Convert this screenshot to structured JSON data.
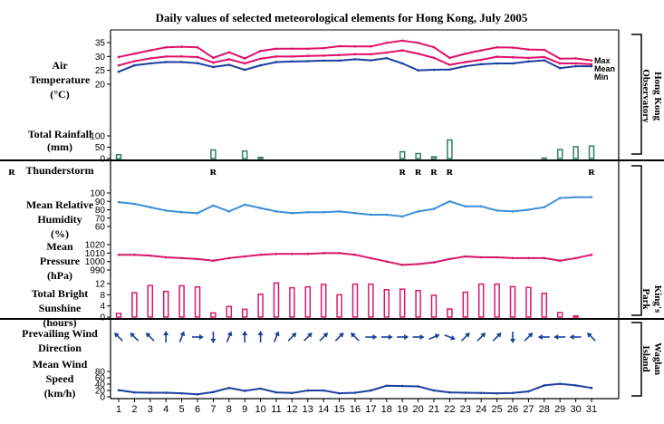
{
  "chart_data": {
    "title": "Daily values of selected meteorological elements for Hong Kong, July 2005",
    "type": "line",
    "days": [
      "1",
      "2",
      "3",
      "4",
      "5",
      "6",
      "7",
      "8",
      "9",
      "10",
      "11",
      "12",
      "13",
      "14",
      "15",
      "16",
      "17",
      "18",
      "19",
      "20",
      "21",
      "22",
      "23",
      "24",
      "25",
      "26",
      "27",
      "28",
      "29",
      "30",
      "31"
    ],
    "stations": [
      "Hong Kong Observatory",
      "King's Park",
      "Waglan Island"
    ],
    "colors": {
      "temp": "#e0106a",
      "temp_min": "#1a3f9e",
      "humidity": "#3b8fd8",
      "pressure": "#d8186a",
      "sunshine": "#d8186a",
      "rainfall": "#2e7f6a",
      "wind": "#1a3f9e"
    },
    "panels": [
      {
        "id": "temperature",
        "type": "line",
        "label": [
          "Air",
          "Temperature",
          "(°C)"
        ],
        "ylim": [
          20,
          35
        ],
        "yticks": [
          "20",
          "25",
          "30",
          "35"
        ],
        "series": [
          {
            "name": "Max",
            "values": [
              29.8,
              31.0,
              32.2,
              33.3,
              33.5,
              33.3,
              29.5,
              31.5,
              29.3,
              32.0,
              32.8,
              32.8,
              32.8,
              33.0,
              33.7,
              33.6,
              33.6,
              34.9,
              35.7,
              34.9,
              33.3,
              29.5,
              31.0,
              32.2,
              33.3,
              33.2,
              32.5,
              32.4,
              29.2,
              29.3,
              28.6
            ]
          },
          {
            "name": "Mean",
            "values": [
              26.8,
              28.3,
              29.3,
              30.0,
              30.0,
              29.8,
              27.8,
              29.0,
              27.5,
              29.2,
              30.0,
              30.0,
              30.2,
              30.3,
              30.5,
              30.8,
              30.8,
              31.4,
              32.2,
              31.0,
              29.5,
              27.0,
              28.0,
              28.8,
              29.9,
              29.7,
              29.5,
              29.8,
              27.5,
              27.5,
              27.2
            ]
          },
          {
            "name": "Min",
            "values": [
              24.5,
              26.8,
              27.5,
              28.0,
              28.0,
              27.6,
              26.2,
              27.0,
              25.2,
              26.8,
              28.0,
              28.2,
              28.3,
              28.5,
              28.5,
              29.0,
              28.6,
              29.4,
              27.5,
              25.0,
              25.2,
              25.3,
              26.5,
              27.2,
              27.5,
              27.5,
              28.2,
              28.6,
              25.8,
              26.5,
              26.5
            ]
          }
        ]
      },
      {
        "id": "rainfall",
        "type": "bar",
        "label": [
          "Total Rainfall",
          "(mm)"
        ],
        "ylim": [
          0,
          100
        ],
        "yticks": [
          "0",
          "50",
          "100"
        ],
        "values": [
          17,
          0,
          0,
          0,
          0,
          0,
          38,
          0,
          33,
          5,
          0,
          0,
          0,
          0,
          0,
          0,
          0,
          0,
          30,
          22,
          8,
          82,
          0,
          0,
          0,
          0,
          0,
          2,
          40,
          52,
          55
        ]
      },
      {
        "id": "thunderstorm",
        "type": "marker",
        "label": [
          "Thunderstorm"
        ],
        "symbol": "ʀ",
        "days": [
          7,
          19,
          20,
          21,
          22,
          31
        ]
      },
      {
        "id": "humidity",
        "type": "line",
        "label": [
          "Mean Relative",
          "Humidity",
          "(%)"
        ],
        "ylim": [
          60,
          100
        ],
        "yticks": [
          "60",
          "70",
          "80",
          "90",
          "100"
        ],
        "values": [
          89,
          87,
          83,
          79,
          77,
          76,
          85,
          78,
          86,
          82,
          78,
          76,
          77,
          77,
          78,
          76,
          74,
          74,
          72,
          78,
          81,
          90,
          84,
          84,
          79,
          78,
          80,
          83,
          94,
          95,
          95
        ]
      },
      {
        "id": "pressure",
        "type": "line",
        "label": [
          "Mean",
          "Pressure",
          "(hPa)"
        ],
        "ylim": [
          990,
          1020
        ],
        "yticks": [
          "990",
          "1000",
          "1010",
          "1020"
        ],
        "values": [
          1008,
          1008,
          1007,
          1005,
          1004,
          1003,
          1001,
          1004,
          1006,
          1008,
          1009,
          1009,
          1009,
          1010,
          1010,
          1008,
          1004,
          1000,
          996,
          997,
          999,
          1003,
          1006,
          1005,
          1005,
          1004,
          1004,
          1004,
          1001,
          1004,
          1008
        ]
      },
      {
        "id": "sunshine",
        "type": "bar",
        "label": [
          "Total Bright",
          "Sunshine",
          "(hours)"
        ],
        "ylim": [
          0,
          12
        ],
        "yticks": [
          "0",
          "4",
          "8",
          "12"
        ],
        "values": [
          1.3,
          8.7,
          11.3,
          9.2,
          11.2,
          10.8,
          1.5,
          3.8,
          2.8,
          8.2,
          12.2,
          10.5,
          10.8,
          11.7,
          8,
          11.8,
          11.8,
          9.8,
          10,
          9.5,
          7.8,
          2.9,
          8.9,
          11.8,
          11.8,
          10.9,
          10.6,
          8.5,
          1.6,
          0.4,
          0
        ]
      },
      {
        "id": "wind_direction",
        "type": "arrows",
        "label": [
          "Prevailing Wind",
          "Direction"
        ],
        "degrees_from": [
          135,
          135,
          135,
          180,
          202,
          270,
          0,
          202,
          180,
          180,
          202,
          225,
          225,
          225,
          225,
          135,
          270,
          270,
          270,
          270,
          247,
          292,
          225,
          225,
          225,
          0,
          225,
          90,
          90,
          90,
          135
        ]
      },
      {
        "id": "wind_speed",
        "type": "line",
        "label": [
          "Mean Wind",
          "Speed",
          "(km/h)"
        ],
        "ylim": [
          0,
          80
        ],
        "yticks": [
          "0",
          "20",
          "40",
          "60",
          "80"
        ],
        "values": [
          21,
          14,
          13,
          13,
          11,
          8,
          15,
          28,
          19,
          26,
          14,
          12,
          20,
          20,
          11,
          13,
          20,
          35,
          34,
          33,
          20,
          14,
          13,
          12,
          11,
          12,
          17,
          36,
          41,
          36,
          28
        ]
      }
    ]
  }
}
